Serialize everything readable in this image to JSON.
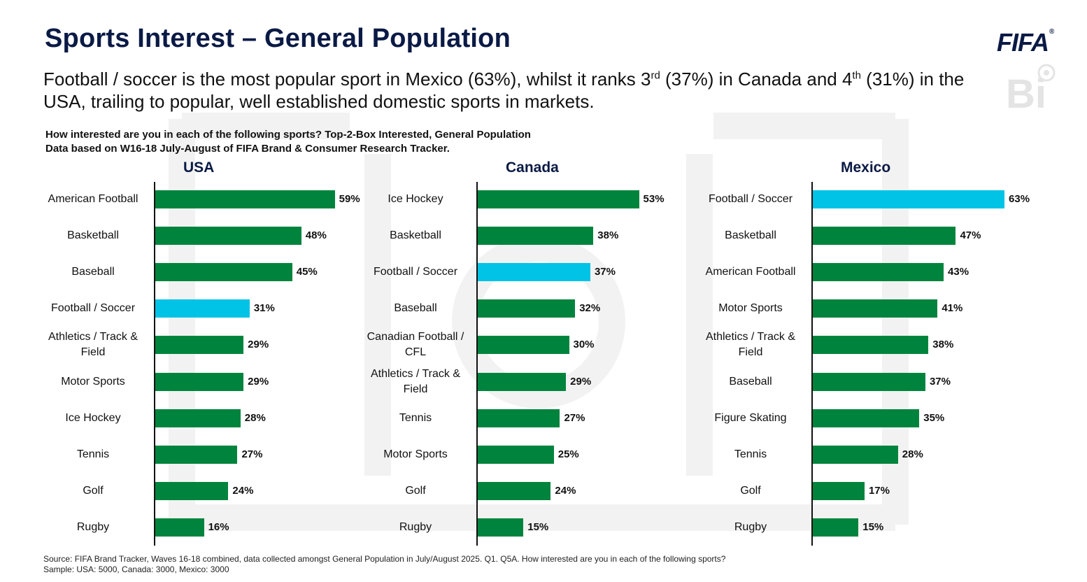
{
  "header": {
    "title": "Sports Interest – General Population",
    "subtitle_part1": "Football / soccer is the most popular sport in Mexico (63%), whilst it ranks 3",
    "subtitle_sup1": "rd",
    "subtitle_part2": " (37%) in Canada and 4",
    "subtitle_sup2": "th",
    "subtitle_part3": " (31%) in the USA, trailing to popular, well established domestic sports in markets.",
    "logo_text": "FIFA",
    "logo_reg": "®",
    "logo_bi": "Bi"
  },
  "question": {
    "line1": "How interested are you in each of the following sports? Top-2-Box Interested, General Population",
    "line2": "Data based on W16-18 July-August of FIFA Brand & Consumer Research Tracker."
  },
  "colors": {
    "bar": "#00843d",
    "highlight": "#00c3e6",
    "title": "#0a1a45"
  },
  "chart_data": [
    {
      "type": "bar",
      "orientation": "horizontal",
      "title": "USA",
      "unit": "%",
      "xlim": [
        0,
        70
      ],
      "grid": false,
      "categories": [
        "American Football",
        "Basketball",
        "Baseball",
        "Football / Soccer",
        "Athletics / Track & Field",
        "Motor Sports",
        "Ice Hockey",
        "Tennis",
        "Golf",
        "Rugby"
      ],
      "values": [
        59,
        48,
        45,
        31,
        29,
        29,
        28,
        27,
        24,
        16
      ],
      "highlight": "Football / Soccer"
    },
    {
      "type": "bar",
      "orientation": "horizontal",
      "title": "Canada",
      "unit": "%",
      "xlim": [
        0,
        70
      ],
      "grid": false,
      "categories": [
        "Ice Hockey",
        "Basketball",
        "Football / Soccer",
        "Baseball",
        "Canadian Football / CFL",
        "Athletics / Track & Field",
        "Tennis",
        "Motor Sports",
        "Golf",
        "Rugby"
      ],
      "values": [
        53,
        38,
        37,
        32,
        30,
        29,
        27,
        25,
        24,
        15
      ],
      "highlight": "Football / Soccer"
    },
    {
      "type": "bar",
      "orientation": "horizontal",
      "title": "Mexico",
      "unit": "%",
      "xlim": [
        0,
        70
      ],
      "grid": false,
      "categories": [
        "Football / Soccer",
        "Basketball",
        "American Football",
        "Motor Sports",
        "Athletics / Track & Field",
        "Baseball",
        "Figure Skating",
        "Tennis",
        "Golf",
        "Rugby"
      ],
      "values": [
        63,
        47,
        43,
        41,
        38,
        37,
        35,
        28,
        17,
        15
      ],
      "highlight": "Football / Soccer"
    }
  ],
  "footer": {
    "source": "Source: FIFA Brand Tracker, Waves 16-18 combined, data collected amongst General Population in July/August 2025. Q1. Q5A. How interested are you in each of the following sports?",
    "sample": "Sample: USA: 5000, Canada: 3000, Mexico: 3000"
  }
}
